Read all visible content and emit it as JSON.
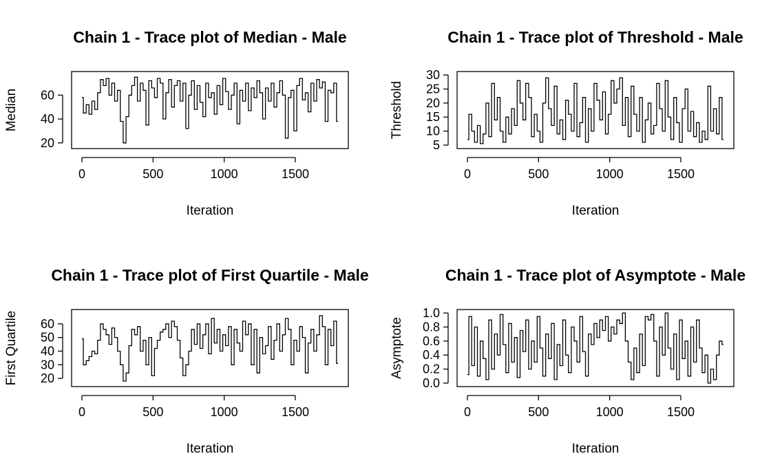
{
  "chart_data": [
    {
      "type": "line",
      "title": "Chain 1 - Trace plot of Median - Male",
      "xlabel": "Iteration",
      "ylabel": "Median",
      "x_ticks": [
        0,
        500,
        1000,
        1500
      ],
      "y_ticks": [
        20,
        40,
        60
      ],
      "xlim": [
        0,
        1800
      ],
      "ylim": [
        17,
        78
      ],
      "series": [
        {
          "x": [
            0,
            20,
            40,
            60,
            80,
            100,
            120,
            140,
            160,
            180,
            200,
            220,
            240,
            260,
            280,
            300,
            320,
            340,
            360,
            380,
            400,
            420,
            440,
            460,
            480,
            500,
            520,
            540,
            560,
            580,
            600,
            620,
            640,
            660,
            680,
            700,
            720,
            740,
            760,
            780,
            800,
            820,
            840,
            860,
            880,
            900,
            920,
            940,
            960,
            980,
            1000,
            1020,
            1040,
            1060,
            1080,
            1100,
            1120,
            1140,
            1160,
            1180,
            1200,
            1220,
            1240,
            1260,
            1280,
            1300,
            1320,
            1340,
            1360,
            1380,
            1400,
            1420,
            1440,
            1460,
            1480,
            1500,
            1520,
            1540,
            1560,
            1580,
            1600,
            1620,
            1640,
            1660,
            1680,
            1700,
            1720,
            1740,
            1760,
            1780,
            1800
          ],
          "y": [
            58,
            45,
            52,
            44,
            55,
            48,
            62,
            73,
            68,
            74,
            60,
            70,
            55,
            64,
            38,
            20,
            42,
            60,
            68,
            75,
            55,
            70,
            64,
            35,
            72,
            66,
            58,
            74,
            70,
            40,
            62,
            73,
            50,
            68,
            72,
            55,
            70,
            32,
            60,
            72,
            48,
            68,
            54,
            42,
            70,
            58,
            62,
            44,
            68,
            52,
            74,
            63,
            48,
            60,
            70,
            36,
            64,
            55,
            70,
            47,
            66,
            58,
            72,
            62,
            40,
            66,
            55,
            70,
            50,
            62,
            72,
            60,
            24,
            58,
            64,
            30,
            68,
            74,
            56,
            62,
            46,
            70,
            55,
            73,
            66,
            71,
            38,
            64,
            62,
            70,
            38
          ]
        }
      ]
    },
    {
      "type": "line",
      "title": "Chain 1 - Trace plot of Threshold - Male",
      "xlabel": "Iteration",
      "ylabel": "Threshold",
      "x_ticks": [
        0,
        500,
        1000,
        1500
      ],
      "y_ticks": [
        5,
        10,
        15,
        20,
        25,
        30
      ],
      "xlim": [
        0,
        1800
      ],
      "ylim": [
        4.5,
        30.5
      ],
      "series": [
        {
          "x": [
            0,
            20,
            40,
            60,
            80,
            100,
            120,
            140,
            160,
            180,
            200,
            220,
            240,
            260,
            280,
            300,
            320,
            340,
            360,
            380,
            400,
            420,
            440,
            460,
            480,
            500,
            520,
            540,
            560,
            580,
            600,
            620,
            640,
            660,
            680,
            700,
            720,
            740,
            760,
            780,
            800,
            820,
            840,
            860,
            880,
            900,
            920,
            940,
            960,
            980,
            1000,
            1020,
            1040,
            1060,
            1080,
            1100,
            1120,
            1140,
            1160,
            1180,
            1200,
            1220,
            1240,
            1260,
            1280,
            1300,
            1320,
            1340,
            1360,
            1380,
            1400,
            1420,
            1440,
            1460,
            1480,
            1500,
            1520,
            1540,
            1560,
            1580,
            1600,
            1620,
            1640,
            1660,
            1680,
            1700,
            1720,
            1740,
            1760,
            1780,
            1800
          ],
          "y": [
            7,
            16,
            10,
            6,
            12,
            5.5,
            9,
            20,
            8,
            27,
            14,
            22,
            10,
            6,
            15,
            9,
            18,
            12,
            28,
            20,
            14,
            27,
            22,
            8,
            16,
            10,
            6,
            20,
            29,
            18,
            12,
            26,
            9,
            14,
            7,
            21,
            16,
            10,
            27,
            8,
            13,
            22,
            6,
            18,
            10,
            27,
            21,
            14,
            24,
            9,
            16,
            28,
            20,
            25,
            29,
            12,
            22,
            8,
            26,
            16,
            10,
            22,
            6,
            14,
            20,
            9,
            12,
            27,
            18,
            10,
            28,
            15,
            7,
            22,
            13,
            6,
            18,
            25,
            10,
            17,
            8,
            13,
            6,
            10,
            7,
            26,
            10,
            18,
            9,
            22,
            7
          ]
        }
      ]
    },
    {
      "type": "line",
      "title": "Chain 1 - Trace plot of First Quartile - Male",
      "xlabel": "Iteration",
      "ylabel": "First Quartile",
      "x_ticks": [
        0,
        500,
        1000,
        1500
      ],
      "y_ticks": [
        20,
        30,
        40,
        50,
        60
      ],
      "xlim": [
        0,
        1800
      ],
      "ylim": [
        15.5,
        69
      ],
      "series": [
        {
          "x": [
            0,
            20,
            40,
            60,
            80,
            100,
            120,
            140,
            160,
            180,
            200,
            220,
            240,
            260,
            280,
            300,
            320,
            340,
            360,
            380,
            400,
            420,
            440,
            460,
            480,
            500,
            520,
            540,
            560,
            580,
            600,
            620,
            640,
            660,
            680,
            700,
            720,
            740,
            760,
            780,
            800,
            820,
            840,
            860,
            880,
            900,
            920,
            940,
            960,
            980,
            1000,
            1020,
            1040,
            1060,
            1080,
            1100,
            1120,
            1140,
            1160,
            1180,
            1200,
            1220,
            1240,
            1260,
            1280,
            1300,
            1320,
            1340,
            1360,
            1380,
            1400,
            1420,
            1440,
            1460,
            1480,
            1500,
            1520,
            1540,
            1560,
            1580,
            1600,
            1620,
            1640,
            1660,
            1680,
            1700,
            1720,
            1740,
            1760,
            1780,
            1800
          ],
          "y": [
            49,
            30,
            33,
            36,
            40,
            38,
            48,
            60,
            56,
            52,
            45,
            57,
            50,
            40,
            30,
            18,
            24,
            44,
            56,
            52,
            58,
            40,
            48,
            30,
            50,
            22,
            42,
            48,
            54,
            56,
            60,
            50,
            62,
            58,
            48,
            35,
            22,
            30,
            40,
            56,
            45,
            60,
            42,
            52,
            60,
            38,
            64,
            46,
            56,
            40,
            52,
            44,
            58,
            30,
            56,
            46,
            40,
            62,
            52,
            60,
            30,
            56,
            24,
            50,
            38,
            44,
            58,
            34,
            48,
            60,
            40,
            52,
            64,
            56,
            30,
            48,
            40,
            58,
            50,
            24,
            46,
            56,
            40,
            52,
            66,
            58,
            30,
            56,
            44,
            62,
            31
          ]
        }
      ]
    },
    {
      "type": "line",
      "title": "Chain 1 - Trace plot of Asymptote - Male",
      "xlabel": "Iteration",
      "ylabel": "Asymptote",
      "x_ticks": [
        0,
        500,
        1000,
        1500
      ],
      "y_ticks": [
        0.0,
        0.2,
        0.4,
        0.6,
        0.8,
        1.0
      ],
      "y_tick_labels": [
        "0.0",
        "0.2",
        "0.4",
        "0.6",
        "0.8",
        "1.0"
      ],
      "xlim": [
        0,
        1800
      ],
      "ylim": [
        -0.02,
        1.02
      ],
      "series": [
        {
          "x": [
            0,
            20,
            40,
            60,
            80,
            100,
            120,
            140,
            160,
            180,
            200,
            220,
            240,
            260,
            280,
            300,
            320,
            340,
            360,
            380,
            400,
            420,
            440,
            460,
            480,
            500,
            520,
            540,
            560,
            580,
            600,
            620,
            640,
            660,
            680,
            700,
            720,
            740,
            760,
            780,
            800,
            820,
            840,
            860,
            880,
            900,
            920,
            940,
            960,
            980,
            1000,
            1020,
            1040,
            1060,
            1080,
            1100,
            1120,
            1140,
            1160,
            1180,
            1200,
            1220,
            1240,
            1260,
            1280,
            1300,
            1320,
            1340,
            1360,
            1380,
            1400,
            1420,
            1440,
            1460,
            1480,
            1500,
            1520,
            1540,
            1560,
            1580,
            1600,
            1620,
            1640,
            1660,
            1680,
            1700,
            1720,
            1740,
            1760,
            1780,
            1800
          ],
          "y": [
            0.12,
            0.95,
            0.25,
            0.8,
            0.1,
            0.6,
            0.35,
            0.05,
            0.9,
            0.2,
            0.7,
            0.4,
            0.98,
            0.55,
            0.15,
            0.85,
            0.3,
            0.65,
            0.08,
            0.75,
            0.45,
            0.9,
            0.2,
            0.6,
            0.3,
            0.95,
            0.5,
            0.1,
            0.7,
            0.35,
            0.85,
            0.05,
            0.55,
            0.25,
            0.9,
            0.4,
            0.15,
            0.8,
            0.6,
            0.3,
            0.95,
            0.45,
            0.1,
            0.7,
            0.55,
            0.85,
            0.65,
            0.9,
            0.75,
            0.95,
            0.6,
            0.8,
            0.7,
            0.9,
            0.85,
            1.0,
            0.6,
            0.3,
            0.05,
            0.5,
            0.15,
            0.7,
            0.25,
            0.95,
            0.9,
            0.98,
            0.6,
            0.1,
            0.8,
            0.4,
            1.0,
            0.5,
            0.2,
            0.7,
            0.05,
            0.9,
            0.35,
            0.6,
            0.1,
            0.8,
            0.3,
            0.9,
            0.5,
            0.15,
            0.4,
            0.0,
            0.2,
            0.05,
            0.4,
            0.6,
            0.55
          ]
        }
      ]
    }
  ]
}
